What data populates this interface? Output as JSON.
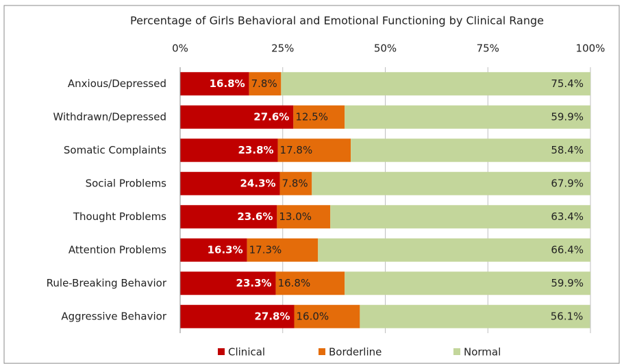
{
  "chart_data": {
    "type": "stacked-bar-horizontal",
    "title": "Percentage of Girls Behavioral and Emotional Functioning by Clinical Range",
    "categories": [
      "Anxious/Depressed",
      "Withdrawn/Depressed",
      "Somatic Complaints",
      "Social Problems",
      "Thought Problems",
      "Attention Problems",
      "Rule-Breaking Behavior",
      "Aggressive Behavior"
    ],
    "series": [
      {
        "name": "Clinical",
        "color": "#c00000",
        "values": [
          16.8,
          27.6,
          23.8,
          24.3,
          23.6,
          16.3,
          23.3,
          27.8
        ],
        "value_labels": [
          "16.8%",
          "27.6%",
          "23.8%",
          "24.3%",
          "23.6%",
          "16.3%",
          "23.3%",
          "27.8%"
        ]
      },
      {
        "name": "Borderline",
        "color": "#e46c0a",
        "values": [
          7.8,
          12.5,
          17.8,
          7.8,
          13.0,
          17.3,
          16.8,
          16.0
        ],
        "value_labels": [
          "7.8%",
          "12.5%",
          "17.8%",
          "7.8%",
          "13.0%",
          "17.3%",
          "16.8%",
          "16.0%"
        ]
      },
      {
        "name": "Normal",
        "color": "#c3d69b",
        "values": [
          75.4,
          59.9,
          58.4,
          67.9,
          63.4,
          66.4,
          59.9,
          56.1
        ],
        "value_labels": [
          "75.4%",
          "59.9%",
          "58.4%",
          "67.9%",
          "63.4%",
          "66.4%",
          "59.9%",
          "56.1%"
        ]
      }
    ],
    "xlim": [
      0,
      100
    ],
    "xticks": [
      {
        "value": 0,
        "label": "0%"
      },
      {
        "value": 25,
        "label": "25%"
      },
      {
        "value": 50,
        "label": "50%"
      },
      {
        "value": 75,
        "label": "75%"
      },
      {
        "value": 100,
        "label": "100%"
      }
    ],
    "grid": true,
    "legend": "bottom"
  }
}
